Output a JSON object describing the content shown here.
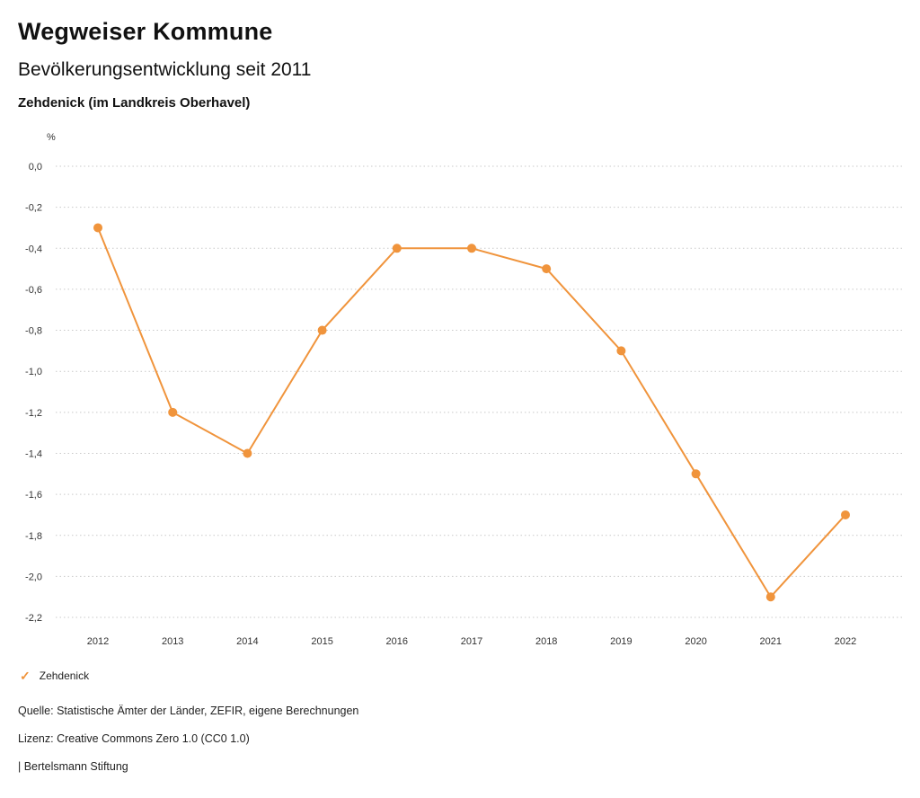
{
  "header": {
    "title": "Wegweiser Kommune",
    "subtitle": "Bevölkerungsentwicklung seit 2011",
    "region": "Zehdenick (im Landkreis Oberhavel)"
  },
  "chart_data": {
    "type": "line",
    "title": "Bevölkerungsentwicklung seit 2011",
    "subtitle": "Zehdenick (im Landkreis Oberhavel)",
    "unit_label": "%",
    "categories": [
      "2012",
      "2013",
      "2014",
      "2015",
      "2016",
      "2017",
      "2018",
      "2019",
      "2020",
      "2021",
      "2022"
    ],
    "series": [
      {
        "name": "Zehdenick",
        "values": [
          -0.3,
          -1.2,
          -1.4,
          -0.8,
          -0.4,
          -0.4,
          -0.5,
          -0.9,
          -1.5,
          -2.1,
          -1.7
        ]
      }
    ],
    "xlabel": "",
    "ylabel": "%",
    "ylim": [
      -2.2,
      0.0
    ],
    "ytick_values": [
      0.0,
      -0.2,
      -0.4,
      -0.6,
      -0.8,
      -1.0,
      -1.2,
      -1.4,
      -1.6,
      -1.8,
      -2.0,
      -2.2
    ],
    "ytick_labels": [
      "0,0",
      "-0,2",
      "-0,4",
      "-0,6",
      "-0,8",
      "-1,0",
      "-1,2",
      "-1,4",
      "-1,6",
      "-1,8",
      "-2,0",
      "-2,2"
    ],
    "grid": "horizontal-dotted",
    "legend_position": "bottom-left",
    "line_color": "#F0943C",
    "marker": "circle"
  },
  "legend": {
    "items": [
      {
        "label": "Zehdenick",
        "color": "#F0943C",
        "marker": "check-icon"
      }
    ]
  },
  "footer": {
    "source": "Quelle: Statistische Ämter der Länder, ZEFIR, eigene Berechnungen",
    "license": "Lizenz: Creative Commons Zero 1.0 (CC0 1.0)",
    "attribution": "| Bertelsmann Stiftung"
  },
  "colors": {
    "accent": "#F0943C",
    "grid": "#c9c9c9",
    "text": "#1a1a1a"
  }
}
